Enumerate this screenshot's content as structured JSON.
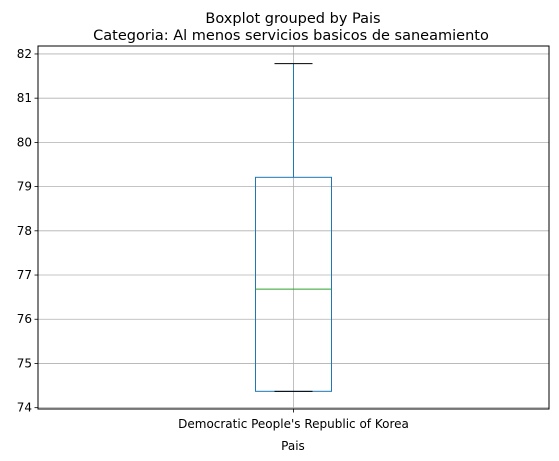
{
  "chart_data": {
    "type": "boxplot",
    "suptitle": "Boxplot grouped by Pais",
    "title": "Categoria: Al menos servicios basicos de saneamiento",
    "xlabel": "Pais",
    "ylabel": "",
    "categories": [
      "Democratic People's Republic of Korea"
    ],
    "boxes": [
      {
        "category": "Democratic People's Republic of Korea",
        "whisker_low": 74.37,
        "q1": 74.37,
        "median": 76.68,
        "q3": 79.21,
        "whisker_high": 81.78
      }
    ],
    "ylim": [
      73.97,
      82.18
    ],
    "yticks": [
      74,
      75,
      76,
      77,
      78,
      79,
      80,
      81,
      82
    ],
    "grid": true,
    "colors": {
      "box": "#1f77b4",
      "median": "#2ca02c",
      "whisker": "#1f77b4",
      "cap": "#000000",
      "grid": "#b0b0b0",
      "axes": "#000000"
    }
  }
}
